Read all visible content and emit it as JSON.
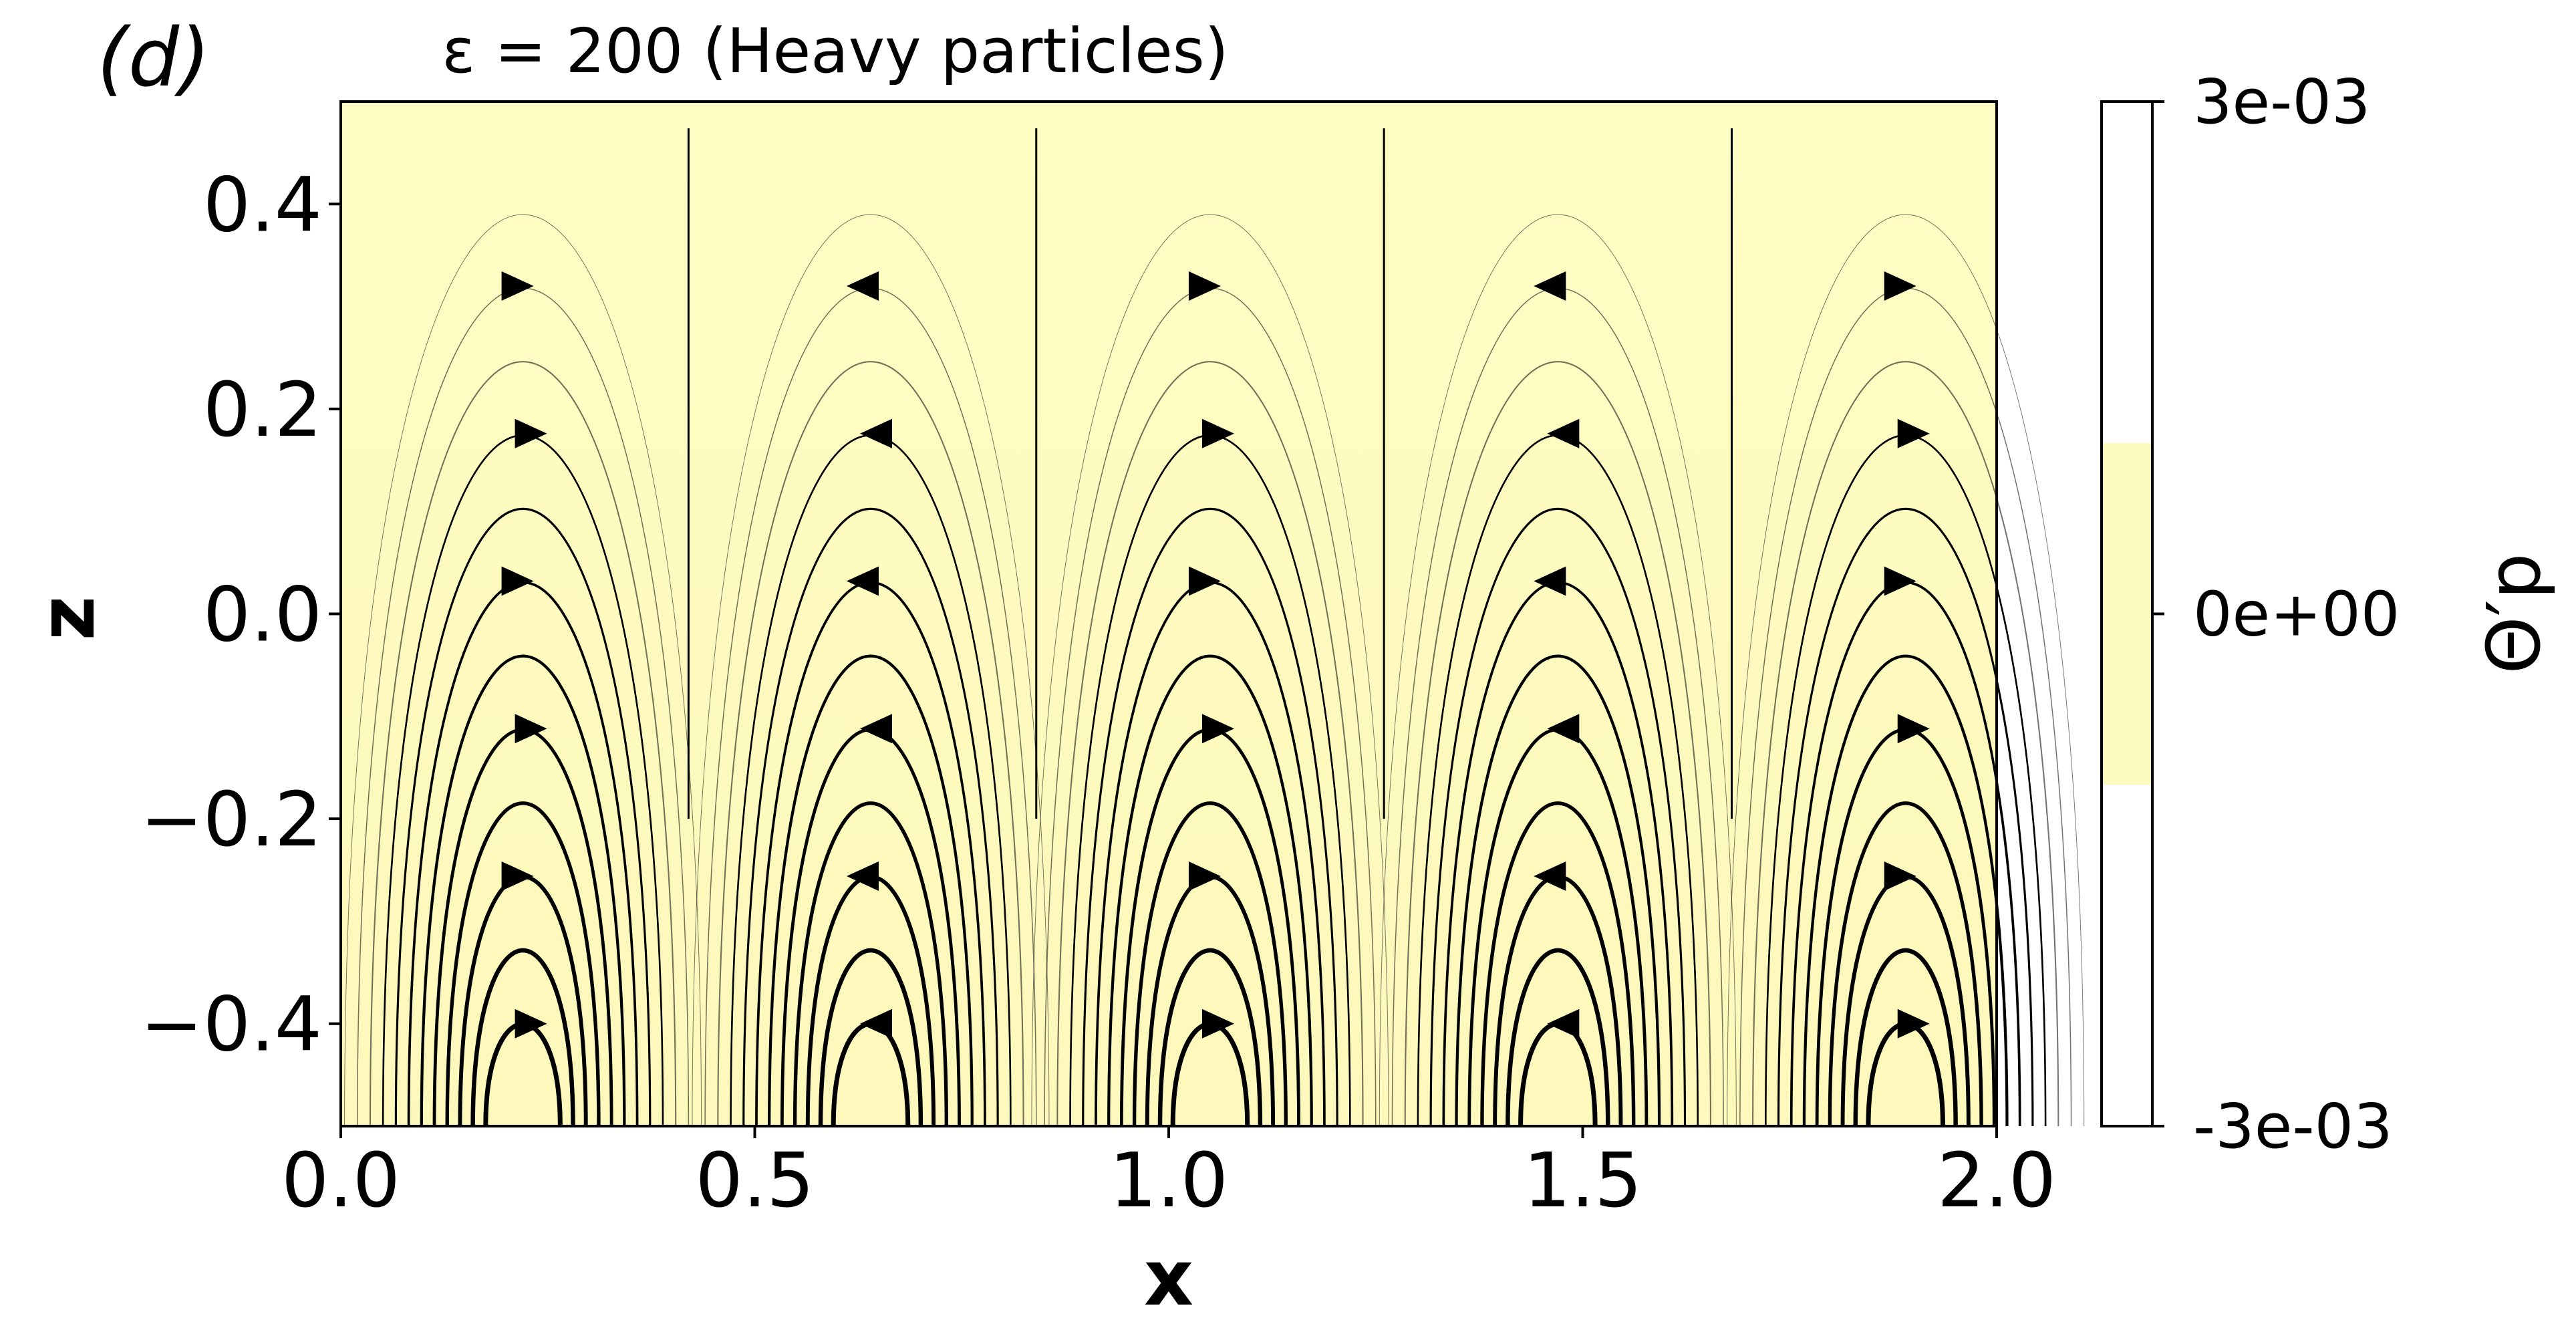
{
  "chart_data": {
    "type": "heatmap",
    "subtype": "streamplot",
    "panel_label": "(d)",
    "title": "ε = 200 (Heavy particles)",
    "xlabel": "x",
    "ylabel": "z",
    "xlim": [
      0.0,
      2.0
    ],
    "ylim": [
      -0.5,
      0.5
    ],
    "x_ticks": [
      0.0,
      0.5,
      1.0,
      1.5,
      2.0
    ],
    "x_tick_labels": [
      "0.0",
      "0.5",
      "1.0",
      "1.5",
      "2.0"
    ],
    "y_ticks": [
      0.4,
      0.2,
      0.0,
      -0.2,
      -0.4
    ],
    "y_tick_labels": [
      "0.4",
      "0.2",
      "0.0",
      "−0.2",
      "−0.4"
    ],
    "field_value": 0.0,
    "field_fill": "#fefcc0",
    "colorbar": {
      "label": "Θ′p",
      "range": [
        -0.003,
        0.003
      ],
      "ticks": [
        0.003,
        0.0,
        -0.003
      ],
      "tick_labels": [
        "3e-03",
        "0e+00",
        "-3e-03"
      ],
      "band_range": [
        -0.001,
        0.001
      ],
      "band_color": "#fdfcbf"
    },
    "streamlines": {
      "cell_centers_x": [
        0.22,
        0.64,
        1.05,
        1.47,
        1.89
      ],
      "cell_base_z": -0.5,
      "divider_lines_x": [
        0.42,
        0.84,
        1.26,
        1.68
      ],
      "color": "#000000"
    }
  }
}
